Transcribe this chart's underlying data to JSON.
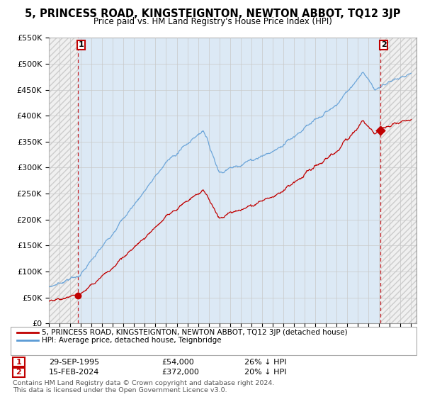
{
  "title": "5, PRINCESS ROAD, KINGSTEIGNTON, NEWTON ABBOT, TQ12 3JP",
  "subtitle": "Price paid vs. HM Land Registry's House Price Index (HPI)",
  "legend_line1": "5, PRINCESS ROAD, KINGSTEIGNTON, NEWTON ABBOT, TQ12 3JP (detached house)",
  "legend_line2": "HPI: Average price, detached house, Teignbridge",
  "annotation1_date": "29-SEP-1995",
  "annotation1_price": "£54,000",
  "annotation1_hpi": "26% ↓ HPI",
  "annotation2_date": "15-FEB-2024",
  "annotation2_price": "£372,000",
  "annotation2_hpi": "20% ↓ HPI",
  "footer": "Contains HM Land Registry data © Crown copyright and database right 2024.\nThis data is licensed under the Open Government Licence v3.0.",
  "hpi_color": "#5b9bd5",
  "hpi_fill_color": "#dce9f5",
  "sale_color": "#c00000",
  "hatch_color": "#cccccc",
  "hatch_bg": "#f0f0f0",
  "grid_color": "#c8c8c8",
  "ylim_max": 550000,
  "ytick_step": 50000,
  "sale1_year": 1995.75,
  "sale1_price": 54000,
  "sale2_year": 2024.12,
  "sale2_price": 372000,
  "xstart": 1993,
  "xend": 2027
}
